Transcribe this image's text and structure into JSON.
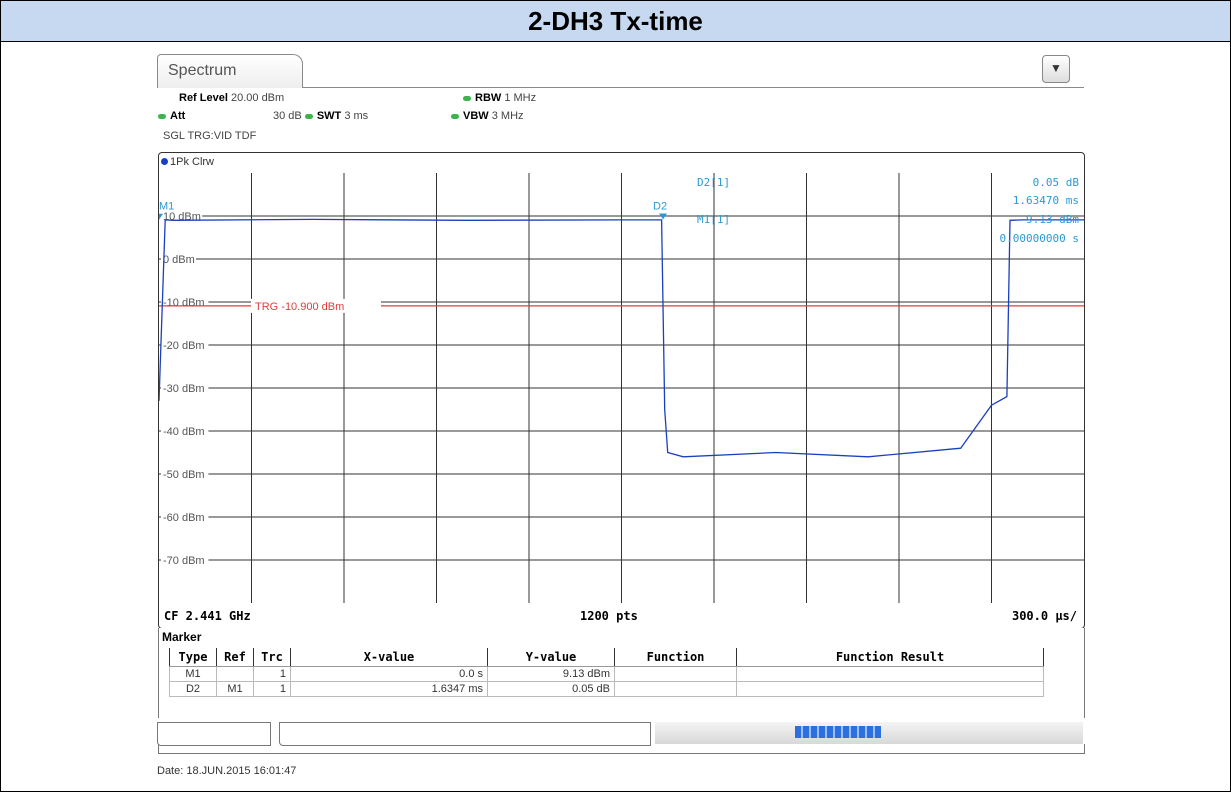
{
  "page_title": "2-DH3 Tx-time",
  "tab_label": "Spectrum",
  "params": {
    "ref_level_label": "Ref Level",
    "ref_level_value": "20.00 dBm",
    "att_label": "Att",
    "att_value": "30 dB",
    "swt_label": "SWT",
    "swt_value": "3 ms",
    "rbw_label": "RBW",
    "rbw_value": "1 MHz",
    "vbw_label": "VBW",
    "vbw_value": "3 MHz",
    "trigger": "SGL TRG:VID TDF"
  },
  "trace_label": "1Pk Clrw",
  "chart_data": {
    "type": "line",
    "y_ticks": [
      "10 dBm",
      "0 dBm",
      "-10 dBm",
      "-20 dBm",
      "-30 dBm",
      "-40 dBm",
      "-50 dBm",
      "-60 dBm",
      "-70 dBm"
    ],
    "ylim": [
      -80,
      20
    ],
    "xlim": [
      0,
      3.0
    ],
    "x_unit": "ms",
    "trigger_level_dbm": -10.9,
    "trigger_label": "TRG -10.900 dBm",
    "series": [
      {
        "x": [
          0.0,
          0.02,
          0.05,
          0.5,
          1.0,
          1.5,
          1.63,
          1.64,
          1.65,
          1.7,
          2.0,
          2.3,
          2.6,
          2.7,
          2.75,
          2.76,
          2.8,
          2.85,
          3.0
        ],
        "y": [
          -33,
          9.1,
          9.0,
          9.2,
          9.0,
          9.1,
          9.1,
          -35,
          -45,
          -46,
          -45,
          -46,
          -44,
          -34,
          -32,
          9.0,
          9.1,
          9.1,
          9.1
        ]
      }
    ],
    "markers": [
      {
        "name": "M1",
        "x": 0.0,
        "y": 9.13
      },
      {
        "name": "D2",
        "x": 1.6347,
        "y": 9.18
      }
    ],
    "marker_readout": {
      "d2_label": "D2[1]",
      "d2_value": "0.05 dB",
      "d2_time": "1.63470 ms",
      "m1_label": "M1[1]",
      "m1_value": "9.13 dBm",
      "m1_time": "0.00000000 s"
    },
    "footer": {
      "cf": "CF 2.441 GHz",
      "pts": "1200 pts",
      "div": "300.0 µs/"
    }
  },
  "marker_table": {
    "title": "Marker",
    "headers": [
      "Type",
      "Ref",
      "Trc",
      "X-value",
      "Y-value",
      "Function",
      "Function Result"
    ],
    "rows": [
      [
        "M1",
        "",
        "1",
        "0.0 s",
        "9.13 dBm",
        "",
        ""
      ],
      [
        "D2",
        "M1",
        "1",
        "1.6347 ms",
        "0.05 dB",
        "",
        ""
      ]
    ]
  },
  "date_stamp": "Date: 18.JUN.2015  16:01:47",
  "colors": {
    "title_bg": "#c6d9f1",
    "trace": "#1a3fbf",
    "trigger_line": "#e03c3c",
    "marker_text": "#2a9ad6"
  }
}
